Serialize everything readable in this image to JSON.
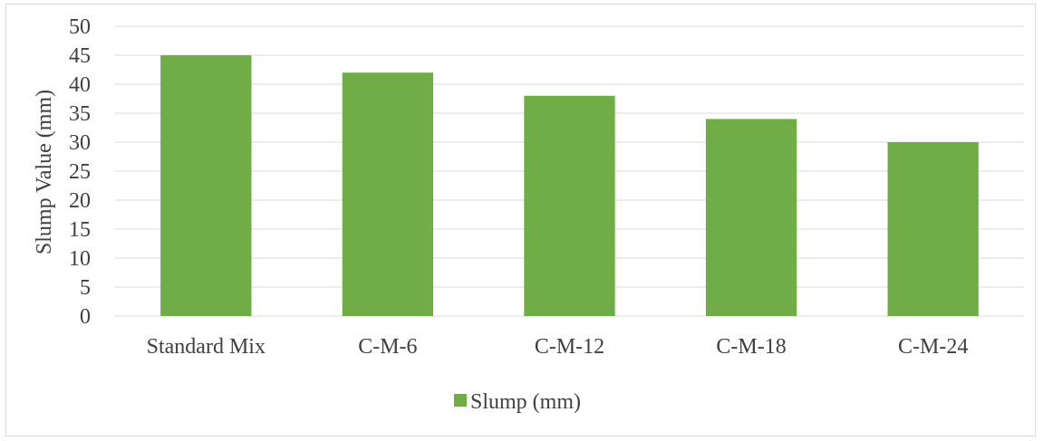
{
  "chart_data": {
    "type": "bar",
    "categories": [
      "Standard Mix",
      "C-M-6",
      "C-M-12",
      "C-M-18",
      "C-M-24"
    ],
    "series": [
      {
        "name": "Slump (mm)",
        "values": [
          45,
          42,
          38,
          34,
          30
        ],
        "color": "#70ad47"
      }
    ],
    "title": "",
    "xlabel": "",
    "ylabel": "Slump Value (mm)",
    "ylim": [
      0,
      50
    ],
    "yticks": [
      0,
      5,
      10,
      15,
      20,
      25,
      30,
      35,
      40,
      45,
      50
    ],
    "grid": true,
    "legend": "bottom",
    "colors": {
      "bar": "#70ad47",
      "grid": "#d9d9d9",
      "text": "#404040"
    }
  }
}
